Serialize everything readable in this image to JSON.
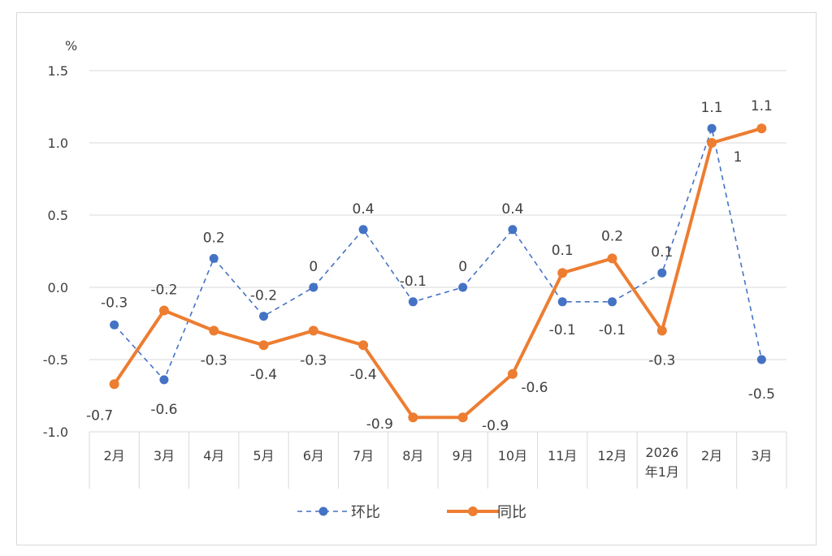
{
  "chart_data": {
    "type": "line",
    "title": "",
    "ylabel": "%",
    "xlabel": "",
    "ylim": [
      -1.0,
      1.5
    ],
    "yticks": [
      "1.5",
      "1.0",
      "0.5",
      "0.0",
      "-0.5",
      "-1.0"
    ],
    "ytick_values": [
      1.5,
      1.0,
      0.5,
      0.0,
      -0.5,
      -1.0
    ],
    "grid": true,
    "legend_position": "bottom",
    "categories": [
      "2月",
      "3月",
      "4月",
      "5月",
      "6月",
      "7月",
      "8月",
      "9月",
      "10月",
      "11月",
      "12月",
      "2026年1月",
      "2月",
      "3月"
    ],
    "category_lines": [
      [
        "2月"
      ],
      [
        "3月"
      ],
      [
        "4月"
      ],
      [
        "5月"
      ],
      [
        "6月"
      ],
      [
        "7月"
      ],
      [
        "8月"
      ],
      [
        "9月"
      ],
      [
        "10月"
      ],
      [
        "11月"
      ],
      [
        "12月"
      ],
      [
        "2026",
        "年1月"
      ],
      [
        "2月"
      ],
      [
        "3月"
      ]
    ],
    "series": [
      {
        "name": "环比",
        "color": "#4472C4",
        "style": "dashed",
        "values": [
          -0.26,
          -0.64,
          0.2,
          -0.2,
          0,
          0.4,
          -0.1,
          0,
          0.4,
          -0.1,
          -0.1,
          0.1,
          1.1,
          -0.5
        ],
        "labels": [
          "-0.3",
          "-0.6",
          "0.2",
          "-0.2",
          "0",
          "0.4",
          "-0.1",
          "0",
          "0.4",
          "-0.1",
          "-0.1",
          "0.1",
          "1.1",
          "-0.5"
        ]
      },
      {
        "name": "同比",
        "color": "#ED7D31",
        "style": "solid",
        "values": [
          -0.67,
          -0.16,
          -0.3,
          -0.4,
          -0.3,
          -0.4,
          -0.9,
          -0.9,
          -0.6,
          0.1,
          0.2,
          -0.3,
          1.0,
          1.1
        ],
        "labels": [
          "-0.7",
          "-0.2",
          "-0.3",
          "-0.4",
          "-0.3",
          "-0.4",
          "-0.9",
          "-0.9",
          "-0.6",
          "0.1",
          "0.2",
          "-0.3",
          "1",
          "1.1"
        ]
      }
    ]
  }
}
